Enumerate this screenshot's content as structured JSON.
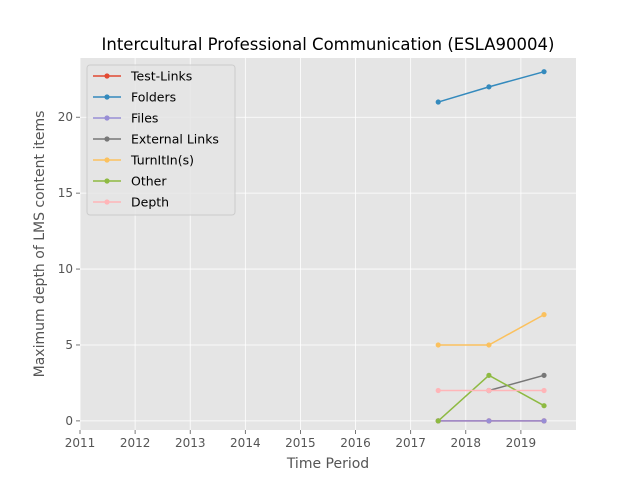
{
  "chart_data": {
    "type": "line",
    "title": "Intercultural Professional Communication (ESLA90004)",
    "xlabel": "Time Period",
    "ylabel": "Maximum depth of LMS content items",
    "xlim": [
      2011,
      2020
    ],
    "ylim": [
      -0.6,
      23.9
    ],
    "xticks": [
      2011,
      2012,
      2013,
      2014,
      2015,
      2016,
      2017,
      2018,
      2019
    ],
    "xtick_labels": [
      "2011",
      "2012",
      "2013",
      "2014",
      "2015",
      "2016",
      "2017",
      "2018",
      "2019"
    ],
    "yticks": [
      0,
      5,
      10,
      15,
      20
    ],
    "ytick_labels": [
      "0",
      "5",
      "10",
      "15",
      "20"
    ],
    "grid": true,
    "legend_position": "top-left",
    "x": [
      2017.5,
      2018.42,
      2019.42
    ],
    "series": [
      {
        "name": "Test-Links",
        "color": "#E24A33",
        "values": [
          0,
          0,
          0
        ]
      },
      {
        "name": "Folders",
        "color": "#348ABD",
        "values": [
          21,
          22,
          23
        ]
      },
      {
        "name": "Files",
        "color": "#988ED5",
        "values": [
          0,
          0,
          0
        ]
      },
      {
        "name": "External Links",
        "color": "#777777",
        "values": [
          null,
          2,
          3
        ]
      },
      {
        "name": "TurnItIn(s)",
        "color": "#FBC15E",
        "values": [
          5,
          5,
          7
        ]
      },
      {
        "name": "Other",
        "color": "#8EBA42",
        "values": [
          0,
          3,
          1
        ]
      },
      {
        "name": "Depth",
        "color": "#FFB5B8",
        "values": [
          2,
          2,
          2
        ]
      }
    ]
  }
}
